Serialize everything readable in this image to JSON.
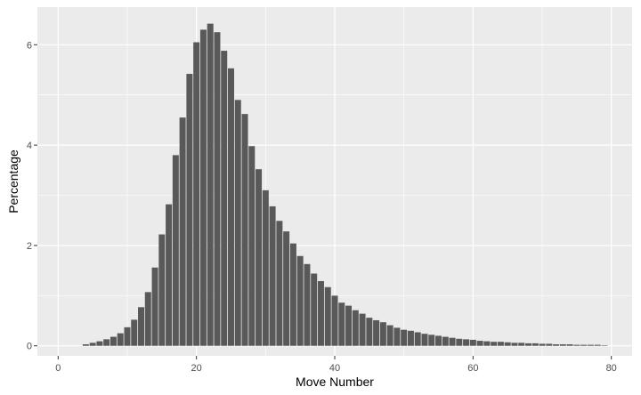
{
  "chart_data": {
    "type": "bar",
    "title": "",
    "xlabel": "Move Number",
    "ylabel": "Percentage",
    "x": [
      4,
      5,
      6,
      7,
      8,
      9,
      10,
      11,
      12,
      13,
      14,
      15,
      16,
      17,
      18,
      19,
      20,
      21,
      22,
      23,
      24,
      25,
      26,
      27,
      28,
      29,
      30,
      31,
      32,
      33,
      34,
      35,
      36,
      37,
      38,
      39,
      40,
      41,
      42,
      43,
      44,
      45,
      46,
      47,
      48,
      49,
      50,
      51,
      52,
      53,
      54,
      55,
      56,
      57,
      58,
      59,
      60,
      61,
      62,
      63,
      64,
      65,
      66,
      67,
      68,
      69,
      70,
      71,
      72,
      73,
      74,
      75,
      76,
      77,
      78,
      79
    ],
    "values": [
      0.03,
      0.06,
      0.09,
      0.13,
      0.18,
      0.25,
      0.37,
      0.52,
      0.77,
      1.07,
      1.56,
      2.22,
      2.82,
      3.8,
      4.55,
      5.42,
      6.05,
      6.3,
      6.42,
      6.25,
      5.88,
      5.53,
      4.9,
      4.62,
      3.98,
      3.52,
      3.1,
      2.78,
      2.49,
      2.28,
      2.04,
      1.79,
      1.63,
      1.44,
      1.29,
      1.17,
      1.0,
      0.86,
      0.8,
      0.71,
      0.64,
      0.56,
      0.51,
      0.47,
      0.41,
      0.36,
      0.32,
      0.3,
      0.27,
      0.24,
      0.22,
      0.2,
      0.18,
      0.16,
      0.14,
      0.13,
      0.12,
      0.1,
      0.09,
      0.08,
      0.08,
      0.07,
      0.06,
      0.06,
      0.05,
      0.05,
      0.04,
      0.04,
      0.03,
      0.03,
      0.03,
      0.02,
      0.02,
      0.02,
      0.02,
      0.01
    ],
    "xlim": [
      -3,
      83
    ],
    "ylim": [
      -0.2,
      6.75
    ],
    "x_ticks": [
      "0",
      "20",
      "40",
      "60",
      "80"
    ],
    "y_ticks": [
      "0",
      "2",
      "4",
      "6"
    ],
    "grid": true,
    "colors": {
      "bar": "#595959",
      "panel": "#ebebeb",
      "grid": "#ffffff"
    }
  }
}
